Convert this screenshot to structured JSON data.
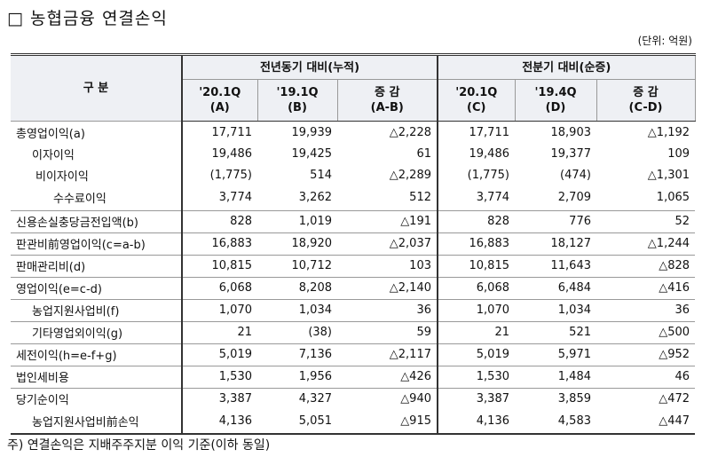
{
  "header": {
    "title": "□ 농협금융 연결손익",
    "unit": "(단위: 억원)"
  },
  "table": {
    "corner": "구 분",
    "groups": [
      "전년동기 대비(누적)",
      "전분기 대비(순증)"
    ],
    "columns": [
      {
        "label": "'20.1Q",
        "sub": "(A)"
      },
      {
        "label": "'19.1Q",
        "sub": "(B)"
      },
      {
        "label": "증 감",
        "sub": "(A-B)"
      },
      {
        "label": "'20.1Q",
        "sub": "(C)"
      },
      {
        "label": "'19.4Q",
        "sub": "(D)"
      },
      {
        "label": "증 감",
        "sub": "(C-D)"
      }
    ],
    "rows": [
      {
        "label": "총영업이익(a)",
        "values": [
          "17,711",
          "19,939",
          "△2,228",
          "17,711",
          "18,903",
          "△1,192"
        ]
      },
      {
        "label": "이자이익",
        "values": [
          "19,486",
          "19,425",
          "61",
          "19,486",
          "19,377",
          "109"
        ]
      },
      {
        "label": "비이자이익",
        "values": [
          "(1,775)",
          "514",
          "△2,289",
          "(1,775)",
          "(474)",
          "△1,301"
        ]
      },
      {
        "label": "수수료이익",
        "values": [
          "3,774",
          "3,262",
          "512",
          "3,774",
          "2,709",
          "1,065"
        ]
      },
      {
        "label": "신용손실충당금전입액(b)",
        "values": [
          "828",
          "1,019",
          "△191",
          "828",
          "776",
          "52"
        ]
      },
      {
        "label": "판관비前영업이익(c=a-b)",
        "values": [
          "16,883",
          "18,920",
          "△2,037",
          "16,883",
          "18,127",
          "△1,244"
        ]
      },
      {
        "label": "판매관리비(d)",
        "values": [
          "10,815",
          "10,712",
          "103",
          "10,815",
          "11,643",
          "△828"
        ]
      },
      {
        "label": "영업이익(e=c-d)",
        "values": [
          "6,068",
          "8,208",
          "△2,140",
          "6,068",
          "6,484",
          "△416"
        ]
      },
      {
        "label": "농업지원사업비(f)",
        "values": [
          "1,070",
          "1,034",
          "36",
          "1,070",
          "1,034",
          "36"
        ]
      },
      {
        "label": "기타영업외이익(g)",
        "values": [
          "21",
          "(38)",
          "59",
          "21",
          "521",
          "△500"
        ]
      },
      {
        "label": "세전이익(h=e-f+g)",
        "values": [
          "5,019",
          "7,136",
          "△2,117",
          "5,019",
          "5,971",
          "△952"
        ]
      },
      {
        "label": "법인세비용",
        "values": [
          "1,530",
          "1,956",
          "△426",
          "1,530",
          "1,484",
          "46"
        ]
      },
      {
        "label": "당기순이익",
        "values": [
          "3,387",
          "4,327",
          "△940",
          "3,387",
          "3,859",
          "△472"
        ]
      },
      {
        "label": "농업지원사업비前손익",
        "values": [
          "4,136",
          "5,051",
          "△915",
          "4,136",
          "4,583",
          "△447"
        ]
      }
    ]
  },
  "footnote": "주) 연결손익은 지배주주지분 이익 기준(이하 동일)"
}
